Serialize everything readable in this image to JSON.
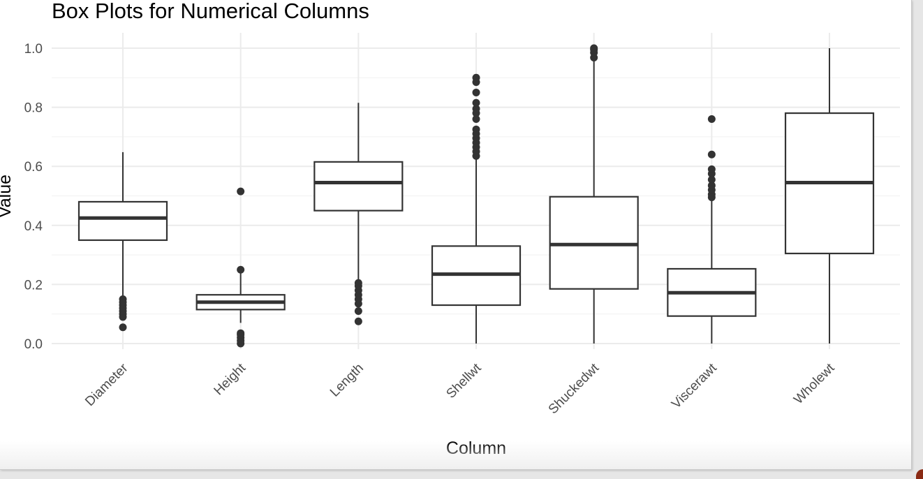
{
  "chart_data": {
    "type": "box",
    "title": "Box Plots for Numerical Columns",
    "xlabel": "Column",
    "ylabel": "Value",
    "ylim": [
      0,
      1
    ],
    "y_ticks": [
      "0.0",
      "0.2",
      "0.4",
      "0.6",
      "0.8",
      "1.0"
    ],
    "y_tick_values": [
      0,
      0.2,
      0.4,
      0.6,
      0.8,
      1.0
    ],
    "grid": true,
    "theme": "minimal",
    "series": [
      {
        "category": "Diameter",
        "whisker_low": 0.16,
        "q1": 0.35,
        "median": 0.425,
        "q3": 0.48,
        "whisker_high": 0.648,
        "outliers": [
          0.055,
          0.09,
          0.1,
          0.11,
          0.12,
          0.13,
          0.14,
          0.15
        ]
      },
      {
        "category": "Height",
        "whisker_low": 0.07,
        "q1": 0.115,
        "median": 0.14,
        "q3": 0.165,
        "whisker_high": 0.24,
        "outliers": [
          0.0,
          0.01,
          0.02,
          0.03,
          0.035,
          0.25,
          0.515
        ]
      },
      {
        "category": "Length",
        "whisker_low": 0.21,
        "q1": 0.45,
        "median": 0.545,
        "q3": 0.615,
        "whisker_high": 0.815,
        "outliers": [
          0.075,
          0.11,
          0.135,
          0.15,
          0.165,
          0.18,
          0.195,
          0.205
        ]
      },
      {
        "category": "Shellwt",
        "whisker_low": 0.0,
        "q1": 0.13,
        "median": 0.235,
        "q3": 0.33,
        "whisker_high": 0.625,
        "outliers": [
          0.635,
          0.65,
          0.665,
          0.68,
          0.695,
          0.71,
          0.725,
          0.76,
          0.78,
          0.795,
          0.815,
          0.85,
          0.885,
          0.9
        ]
      },
      {
        "category": "Shuckedwt",
        "whisker_low": 0.0,
        "q1": 0.185,
        "median": 0.335,
        "q3": 0.497,
        "whisker_high": 0.96,
        "outliers": [
          0.968,
          0.985,
          0.995,
          1.0
        ]
      },
      {
        "category": "Viscerawt",
        "whisker_low": 0.0,
        "q1": 0.093,
        "median": 0.172,
        "q3": 0.253,
        "whisker_high": 0.49,
        "outliers": [
          0.495,
          0.505,
          0.52,
          0.535,
          0.555,
          0.575,
          0.59,
          0.64,
          0.76
        ]
      },
      {
        "category": "Wholewt",
        "whisker_low": 0.0,
        "q1": 0.305,
        "median": 0.545,
        "q3": 0.78,
        "whisker_high": 1.0,
        "outliers": []
      }
    ],
    "colors": {
      "box_stroke": "#333333",
      "box_fill": "#ffffff",
      "point": "#333333",
      "grid_major": "#ebebeb",
      "grid_minor": "#f3f3f3",
      "tick_label": "#4d4d4d",
      "title": "#000000"
    }
  }
}
